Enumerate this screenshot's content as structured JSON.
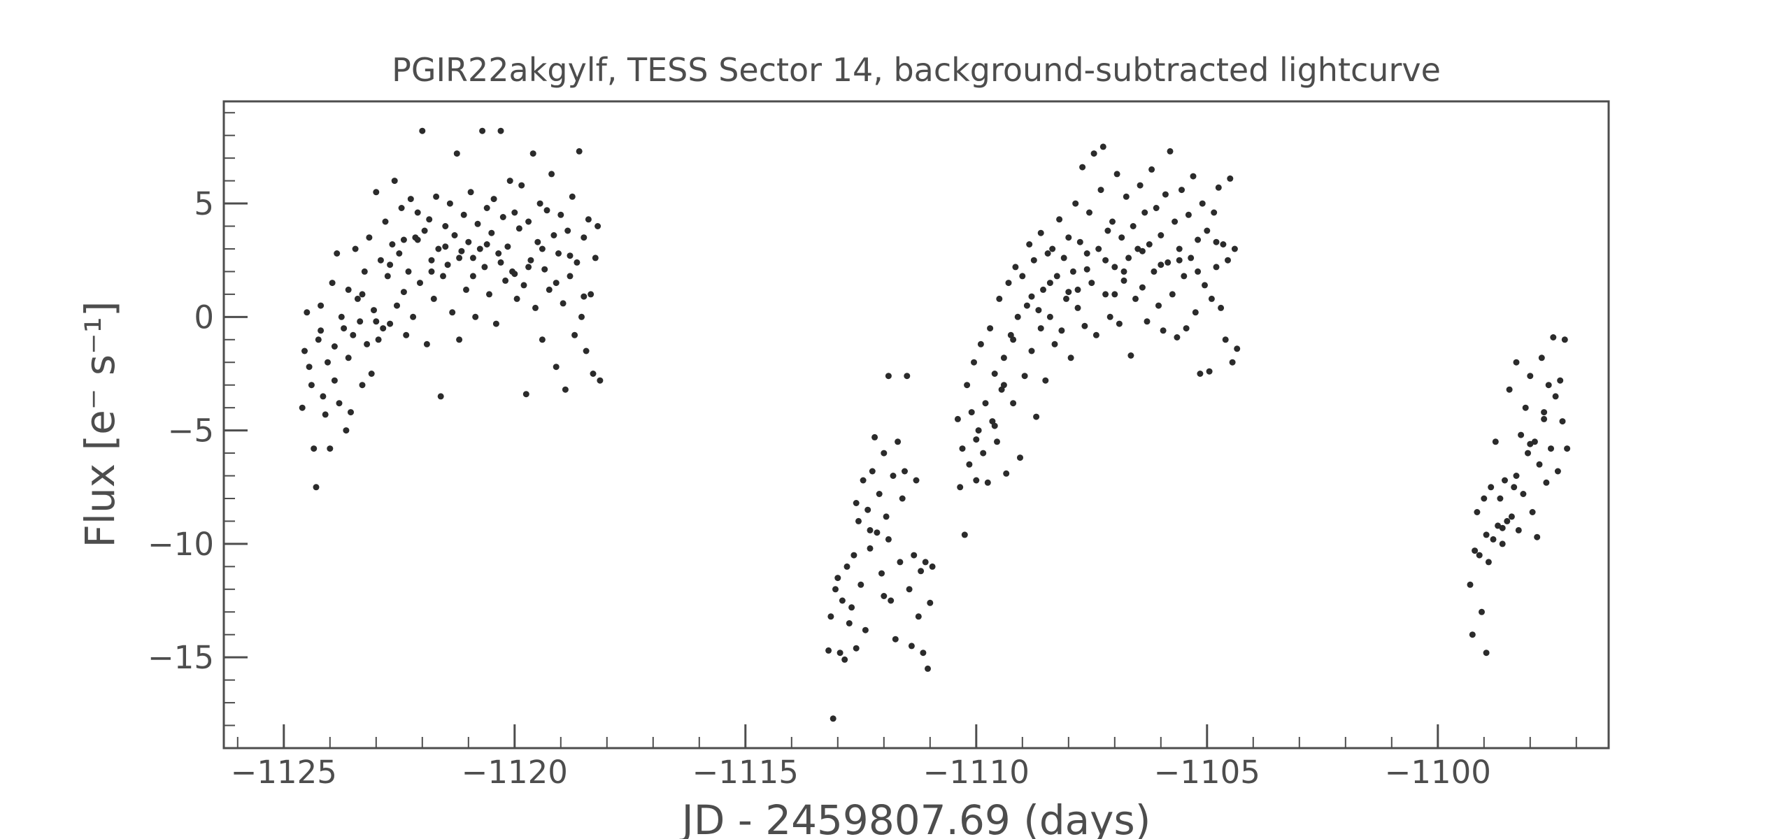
{
  "chart_data": {
    "type": "scatter",
    "title": "PGIR22akgylf, TESS Sector 14, background-subtracted lightcurve",
    "xlabel": "JD - 2459807.69 (days)",
    "ylabel": "Flux [e⁻ s⁻¹]",
    "xlim": [
      -1126.3,
      -1096.3
    ],
    "ylim": [
      -19.0,
      9.5
    ],
    "xticks": [
      -1125,
      -1120,
      -1115,
      -1110,
      -1105,
      -1100
    ],
    "xtick_labels": [
      "−1125",
      "−1120",
      "−1115",
      "−1110",
      "−1105",
      "−1100"
    ],
    "xminor_step": 1,
    "yticks": [
      -15,
      -10,
      -5,
      0,
      5
    ],
    "ytick_labels": [
      "−15",
      "−10",
      "−5",
      "0",
      "5"
    ],
    "yminor_step": 1,
    "grid": false,
    "legend": "none",
    "marker_color": "#2b2b2b",
    "axis_color": "#4d4d4d",
    "points": [
      [
        -1124.6,
        -4.0
      ],
      [
        -1124.55,
        -1.5
      ],
      [
        -1124.5,
        0.2
      ],
      [
        -1124.45,
        -2.2
      ],
      [
        -1124.4,
        -3.0
      ],
      [
        -1124.35,
        -5.8
      ],
      [
        -1124.3,
        -7.5
      ],
      [
        -1124.25,
        -1.0
      ],
      [
        -1124.2,
        0.5
      ],
      [
        -1124.15,
        -3.5
      ],
      [
        -1124.1,
        -4.3
      ],
      [
        -1124.05,
        -2.0
      ],
      [
        -1124.0,
        -5.8
      ],
      [
        -1123.95,
        1.5
      ],
      [
        -1123.9,
        -1.3
      ],
      [
        -1123.85,
        2.8
      ],
      [
        -1123.8,
        -3.8
      ],
      [
        -1123.75,
        0.0
      ],
      [
        -1123.7,
        -0.5
      ],
      [
        -1123.65,
        -5.0
      ],
      [
        -1123.6,
        1.2
      ],
      [
        -1123.55,
        -4.2
      ],
      [
        -1123.5,
        -0.8
      ],
      [
        -1123.45,
        3.0
      ],
      [
        -1123.4,
        0.8
      ],
      [
        -1123.35,
        -0.2
      ],
      [
        -1123.3,
        -3.0
      ],
      [
        -1123.25,
        2.0
      ],
      [
        -1123.2,
        -1.2
      ],
      [
        -1123.15,
        3.5
      ],
      [
        -1123.1,
        -2.5
      ],
      [
        -1123.05,
        0.3
      ],
      [
        -1123.0,
        5.5
      ],
      [
        -1122.95,
        -1.0
      ],
      [
        -1122.9,
        2.5
      ],
      [
        -1122.85,
        -0.5
      ],
      [
        -1122.8,
        4.2
      ],
      [
        -1122.75,
        1.8
      ],
      [
        -1122.7,
        -0.3
      ],
      [
        -1122.65,
        3.2
      ],
      [
        -1122.6,
        6.0
      ],
      [
        -1122.55,
        0.5
      ],
      [
        -1122.5,
        2.8
      ],
      [
        -1122.45,
        4.8
      ],
      [
        -1122.4,
        3.4
      ],
      [
        -1122.35,
        -0.8
      ],
      [
        -1122.3,
        2.0
      ],
      [
        -1122.25,
        5.2
      ],
      [
        -1122.2,
        0.0
      ],
      [
        -1122.15,
        3.5
      ],
      [
        -1122.1,
        4.6
      ],
      [
        -1122.05,
        1.5
      ],
      [
        -1122.0,
        8.2
      ],
      [
        -1121.95,
        3.8
      ],
      [
        -1121.9,
        -1.2
      ],
      [
        -1121.85,
        4.3
      ],
      [
        -1121.8,
        2.5
      ],
      [
        -1121.75,
        0.8
      ],
      [
        -1121.7,
        5.3
      ],
      [
        -1121.65,
        3.0
      ],
      [
        -1121.6,
        -3.5
      ],
      [
        -1121.55,
        1.8
      ],
      [
        -1121.5,
        4.0
      ],
      [
        -1121.45,
        2.3
      ],
      [
        -1121.4,
        5.0
      ],
      [
        -1121.35,
        0.2
      ],
      [
        -1121.3,
        3.6
      ],
      [
        -1121.25,
        7.2
      ],
      [
        -1121.2,
        -1.0
      ],
      [
        -1121.15,
        2.9
      ],
      [
        -1121.1,
        4.5
      ],
      [
        -1121.05,
        1.2
      ],
      [
        -1121.0,
        3.3
      ],
      [
        -1120.95,
        5.5
      ],
      [
        -1120.9,
        2.6
      ],
      [
        -1120.85,
        0.0
      ],
      [
        -1120.8,
        4.1
      ],
      [
        -1120.75,
        3.0
      ],
      [
        -1120.7,
        8.2
      ],
      [
        -1120.65,
        2.2
      ],
      [
        -1120.6,
        4.8
      ],
      [
        -1120.55,
        1.0
      ],
      [
        -1120.5,
        3.7
      ],
      [
        -1120.45,
        5.2
      ],
      [
        -1120.4,
        -0.3
      ],
      [
        -1120.35,
        2.8
      ],
      [
        -1120.3,
        8.2
      ],
      [
        -1120.25,
        4.4
      ],
      [
        -1120.2,
        1.6
      ],
      [
        -1120.15,
        3.1
      ],
      [
        -1120.1,
        6.0
      ],
      [
        -1120.05,
        2.0
      ],
      [
        -1120.0,
        4.6
      ],
      [
        -1119.95,
        0.8
      ],
      [
        -1119.9,
        3.9
      ],
      [
        -1119.85,
        5.8
      ],
      [
        -1119.8,
        1.4
      ],
      [
        -1119.75,
        -3.4
      ],
      [
        -1119.7,
        4.2
      ],
      [
        -1119.65,
        2.5
      ],
      [
        -1119.6,
        7.2
      ],
      [
        -1119.55,
        0.4
      ],
      [
        -1119.5,
        3.3
      ],
      [
        -1119.45,
        5.0
      ],
      [
        -1119.4,
        -1.0
      ],
      [
        -1119.35,
        2.1
      ],
      [
        -1119.3,
        4.7
      ],
      [
        -1119.25,
        1.2
      ],
      [
        -1119.2,
        6.3
      ],
      [
        -1119.15,
        3.6
      ],
      [
        -1119.1,
        -2.2
      ],
      [
        -1119.05,
        2.8
      ],
      [
        -1119.0,
        4.5
      ],
      [
        -1118.95,
        0.6
      ],
      [
        -1118.9,
        -3.2
      ],
      [
        -1118.85,
        3.8
      ],
      [
        -1118.8,
        1.8
      ],
      [
        -1118.75,
        5.3
      ],
      [
        -1118.7,
        -0.8
      ],
      [
        -1118.65,
        2.4
      ],
      [
        -1118.6,
        7.3
      ],
      [
        -1118.55,
        0.0
      ],
      [
        -1118.5,
        3.5
      ],
      [
        -1118.45,
        -1.5
      ],
      [
        -1118.4,
        4.3
      ],
      [
        -1118.35,
        1.0
      ],
      [
        -1118.3,
        -2.5
      ],
      [
        -1118.25,
        2.6
      ],
      [
        -1118.2,
        4.0
      ],
      [
        -1118.15,
        -2.8
      ],
      [
        -1123.3,
        1.0
      ],
      [
        -1123.0,
        -0.2
      ],
      [
        -1122.7,
        2.3
      ],
      [
        -1122.4,
        1.1
      ],
      [
        -1122.1,
        3.4
      ],
      [
        -1121.8,
        2.0
      ],
      [
        -1121.5,
        3.1
      ],
      [
        -1121.2,
        2.6
      ],
      [
        -1120.9,
        1.8
      ],
      [
        -1120.6,
        3.2
      ],
      [
        -1120.3,
        2.4
      ],
      [
        -1120.0,
        1.9
      ],
      [
        -1119.7,
        2.2
      ],
      [
        -1119.4,
        3.0
      ],
      [
        -1119.1,
        1.5
      ],
      [
        -1118.8,
        2.7
      ],
      [
        -1118.5,
        0.9
      ],
      [
        -1124.2,
        -0.6
      ],
      [
        -1123.9,
        -2.8
      ],
      [
        -1123.6,
        -1.8
      ],
      [
        -1113.2,
        -14.7
      ],
      [
        -1113.15,
        -13.2
      ],
      [
        -1113.1,
        -17.7
      ],
      [
        -1113.05,
        -12.0
      ],
      [
        -1113.0,
        -11.5
      ],
      [
        -1112.95,
        -14.8
      ],
      [
        -1112.9,
        -12.5
      ],
      [
        -1112.85,
        -15.1
      ],
      [
        -1112.8,
        -11.0
      ],
      [
        -1112.75,
        -13.5
      ],
      [
        -1112.7,
        -12.8
      ],
      [
        -1112.65,
        -10.5
      ],
      [
        -1112.6,
        -14.6
      ],
      [
        -1112.55,
        -9.0
      ],
      [
        -1112.5,
        -11.8
      ],
      [
        -1112.45,
        -7.2
      ],
      [
        -1112.4,
        -13.8
      ],
      [
        -1112.35,
        -8.5
      ],
      [
        -1112.3,
        -10.2
      ],
      [
        -1112.25,
        -6.8
      ],
      [
        -1112.2,
        -5.3
      ],
      [
        -1112.15,
        -9.5
      ],
      [
        -1112.1,
        -7.8
      ],
      [
        -1112.05,
        -11.3
      ],
      [
        -1112.0,
        -6.0
      ],
      [
        -1111.95,
        -8.8
      ],
      [
        -1111.9,
        -2.6
      ],
      [
        -1111.85,
        -12.5
      ],
      [
        -1111.8,
        -7.0
      ],
      [
        -1111.75,
        -14.2
      ],
      [
        -1111.7,
        -5.5
      ],
      [
        -1111.65,
        -10.8
      ],
      [
        -1111.6,
        -8.0
      ],
      [
        -1111.55,
        -6.8
      ],
      [
        -1111.5,
        -2.6
      ],
      [
        -1111.45,
        -12.0
      ],
      [
        -1111.4,
        -14.5
      ],
      [
        -1111.35,
        -10.5
      ],
      [
        -1111.3,
        -7.2
      ],
      [
        -1111.25,
        -13.2
      ],
      [
        -1111.2,
        -11.2
      ],
      [
        -1111.15,
        -14.8
      ],
      [
        -1111.1,
        -10.8
      ],
      [
        -1111.05,
        -15.5
      ],
      [
        -1111.0,
        -12.6
      ],
      [
        -1110.95,
        -11.0
      ],
      [
        -1112.3,
        -9.4
      ],
      [
        -1112.6,
        -8.2
      ],
      [
        -1111.9,
        -9.8
      ],
      [
        -1112.0,
        -12.3
      ],
      [
        -1110.4,
        -4.5
      ],
      [
        -1110.35,
        -7.5
      ],
      [
        -1110.3,
        -5.8
      ],
      [
        -1110.25,
        -9.6
      ],
      [
        -1110.2,
        -3.0
      ],
      [
        -1110.15,
        -6.5
      ],
      [
        -1110.1,
        -4.2
      ],
      [
        -1110.05,
        -2.0
      ],
      [
        -1110.0,
        -7.2
      ],
      [
        -1109.95,
        -5.0
      ],
      [
        -1109.9,
        -1.2
      ],
      [
        -1109.85,
        -6.0
      ],
      [
        -1109.8,
        -3.8
      ],
      [
        -1109.75,
        -7.3
      ],
      [
        -1109.7,
        -0.5
      ],
      [
        -1109.65,
        -4.6
      ],
      [
        -1109.6,
        -2.5
      ],
      [
        -1109.55,
        -5.5
      ],
      [
        -1109.5,
        0.8
      ],
      [
        -1109.45,
        -3.2
      ],
      [
        -1109.4,
        -1.8
      ],
      [
        -1109.35,
        -6.9
      ],
      [
        -1109.3,
        1.5
      ],
      [
        -1109.25,
        -0.8
      ],
      [
        -1109.2,
        -3.8
      ],
      [
        -1109.15,
        2.2
      ],
      [
        -1109.1,
        0.0
      ],
      [
        -1109.05,
        -6.2
      ],
      [
        -1109.0,
        1.8
      ],
      [
        -1108.95,
        -2.6
      ],
      [
        -1108.9,
        0.5
      ],
      [
        -1108.85,
        3.2
      ],
      [
        -1108.8,
        -1.5
      ],
      [
        -1108.75,
        2.5
      ],
      [
        -1108.7,
        -4.4
      ],
      [
        -1108.65,
        0.3
      ],
      [
        -1108.6,
        3.7
      ],
      [
        -1108.55,
        1.2
      ],
      [
        -1108.5,
        -2.8
      ],
      [
        -1108.45,
        2.8
      ],
      [
        -1108.4,
        0.0
      ],
      [
        -1108.35,
        3.0
      ],
      [
        -1108.3,
        -1.2
      ],
      [
        -1108.25,
        1.8
      ],
      [
        -1108.2,
        4.3
      ],
      [
        -1108.15,
        -0.6
      ],
      [
        -1108.1,
        2.6
      ],
      [
        -1108.05,
        0.8
      ],
      [
        -1108.0,
        3.5
      ],
      [
        -1107.95,
        -1.8
      ],
      [
        -1107.9,
        2.0
      ],
      [
        -1107.85,
        5.0
      ],
      [
        -1107.8,
        0.4
      ],
      [
        -1107.75,
        3.3
      ],
      [
        -1107.7,
        6.6
      ],
      [
        -1107.65,
        -0.4
      ],
      [
        -1107.6,
        2.8
      ],
      [
        -1107.55,
        4.6
      ],
      [
        -1107.5,
        1.5
      ],
      [
        -1107.45,
        7.2
      ],
      [
        -1107.4,
        -0.8
      ],
      [
        -1107.35,
        3.0
      ],
      [
        -1107.3,
        5.6
      ],
      [
        -1107.25,
        7.5
      ],
      [
        -1107.2,
        1.0
      ],
      [
        -1107.15,
        3.8
      ],
      [
        -1107.1,
        0.0
      ],
      [
        -1107.05,
        4.2
      ],
      [
        -1107.0,
        2.2
      ],
      [
        -1106.95,
        6.3
      ],
      [
        -1106.9,
        -0.3
      ],
      [
        -1106.85,
        3.5
      ],
      [
        -1106.8,
        1.6
      ],
      [
        -1106.75,
        5.3
      ],
      [
        -1106.7,
        2.6
      ],
      [
        -1106.65,
        -1.7
      ],
      [
        -1106.6,
        4.0
      ],
      [
        -1106.55,
        0.8
      ],
      [
        -1106.5,
        3.0
      ],
      [
        -1106.45,
        5.8
      ],
      [
        -1106.4,
        1.3
      ],
      [
        -1106.35,
        4.6
      ],
      [
        -1106.3,
        -0.2
      ],
      [
        -1106.25,
        3.2
      ],
      [
        -1106.2,
        6.5
      ],
      [
        -1106.15,
        2.0
      ],
      [
        -1106.1,
        4.8
      ],
      [
        -1106.05,
        0.5
      ],
      [
        -1106.0,
        3.6
      ],
      [
        -1105.95,
        -0.6
      ],
      [
        -1105.9,
        5.4
      ],
      [
        -1105.85,
        2.4
      ],
      [
        -1105.8,
        7.3
      ],
      [
        -1105.75,
        1.0
      ],
      [
        -1105.7,
        4.2
      ],
      [
        -1105.65,
        -0.9
      ],
      [
        -1105.6,
        3.0
      ],
      [
        -1105.55,
        5.6
      ],
      [
        -1105.5,
        1.8
      ],
      [
        -1105.45,
        -0.5
      ],
      [
        -1105.4,
        4.5
      ],
      [
        -1105.35,
        2.6
      ],
      [
        -1105.3,
        6.2
      ],
      [
        -1105.25,
        0.2
      ],
      [
        -1105.2,
        3.4
      ],
      [
        -1105.15,
        -2.5
      ],
      [
        -1105.1,
        5.0
      ],
      [
        -1105.05,
        1.4
      ],
      [
        -1105.0,
        3.8
      ],
      [
        -1104.95,
        -2.4
      ],
      [
        -1104.9,
        0.8
      ],
      [
        -1104.85,
        4.6
      ],
      [
        -1104.8,
        2.2
      ],
      [
        -1104.75,
        5.7
      ],
      [
        -1104.7,
        0.4
      ],
      [
        -1104.65,
        3.2
      ],
      [
        -1104.6,
        -1.0
      ],
      [
        -1104.55,
        2.5
      ],
      [
        -1104.5,
        6.1
      ],
      [
        -1104.45,
        -2.0
      ],
      [
        -1104.4,
        3.0
      ],
      [
        -1104.35,
        -1.4
      ],
      [
        -1109.6,
        -4.8
      ],
      [
        -1109.2,
        -1.0
      ],
      [
        -1108.8,
        0.9
      ],
      [
        -1108.4,
        1.5
      ],
      [
        -1108.0,
        1.1
      ],
      [
        -1107.6,
        2.1
      ],
      [
        -1107.2,
        2.5
      ],
      [
        -1106.8,
        2.0
      ],
      [
        -1106.4,
        2.9
      ],
      [
        -1106.0,
        2.3
      ],
      [
        -1105.6,
        2.5
      ],
      [
        -1105.2,
        2.0
      ],
      [
        -1104.8,
        3.3
      ],
      [
        -1110.0,
        -5.4
      ],
      [
        -1109.4,
        -3.0
      ],
      [
        -1108.6,
        -0.5
      ],
      [
        -1107.8,
        1.2
      ],
      [
        -1107.0,
        1.0
      ],
      [
        -1099.3,
        -11.8
      ],
      [
        -1099.25,
        -14.0
      ],
      [
        -1099.2,
        -10.3
      ],
      [
        -1099.15,
        -8.6
      ],
      [
        -1099.1,
        -10.5
      ],
      [
        -1099.05,
        -13.0
      ],
      [
        -1099.0,
        -8.0
      ],
      [
        -1098.95,
        -14.8
      ],
      [
        -1098.9,
        -10.8
      ],
      [
        -1098.85,
        -7.5
      ],
      [
        -1098.8,
        -9.8
      ],
      [
        -1098.75,
        -5.5
      ],
      [
        -1098.7,
        -9.2
      ],
      [
        -1098.65,
        -8.0
      ],
      [
        -1098.6,
        -10.0
      ],
      [
        -1098.55,
        -7.2
      ],
      [
        -1098.5,
        -9.0
      ],
      [
        -1098.45,
        -3.2
      ],
      [
        -1098.4,
        -8.8
      ],
      [
        -1098.35,
        -7.5
      ],
      [
        -1098.3,
        -2.0
      ],
      [
        -1098.25,
        -9.4
      ],
      [
        -1098.2,
        -5.2
      ],
      [
        -1098.15,
        -7.8
      ],
      [
        -1098.1,
        -4.0
      ],
      [
        -1098.05,
        -6.0
      ],
      [
        -1098.0,
        -2.6
      ],
      [
        -1097.95,
        -8.6
      ],
      [
        -1097.9,
        -5.5
      ],
      [
        -1097.85,
        -9.7
      ],
      [
        -1097.8,
        -6.5
      ],
      [
        -1097.75,
        -1.8
      ],
      [
        -1097.7,
        -4.5
      ],
      [
        -1097.65,
        -7.3
      ],
      [
        -1097.6,
        -3.0
      ],
      [
        -1097.55,
        -5.8
      ],
      [
        -1097.5,
        -0.9
      ],
      [
        -1097.45,
        -3.5
      ],
      [
        -1097.4,
        -6.8
      ],
      [
        -1097.35,
        -2.8
      ],
      [
        -1097.3,
        -4.6
      ],
      [
        -1097.25,
        -1.0
      ],
      [
        -1097.2,
        -5.8
      ],
      [
        -1098.95,
        -9.6
      ],
      [
        -1098.6,
        -9.3
      ],
      [
        -1098.3,
        -7.0
      ],
      [
        -1098.0,
        -5.6
      ],
      [
        -1097.7,
        -4.2
      ]
    ]
  }
}
